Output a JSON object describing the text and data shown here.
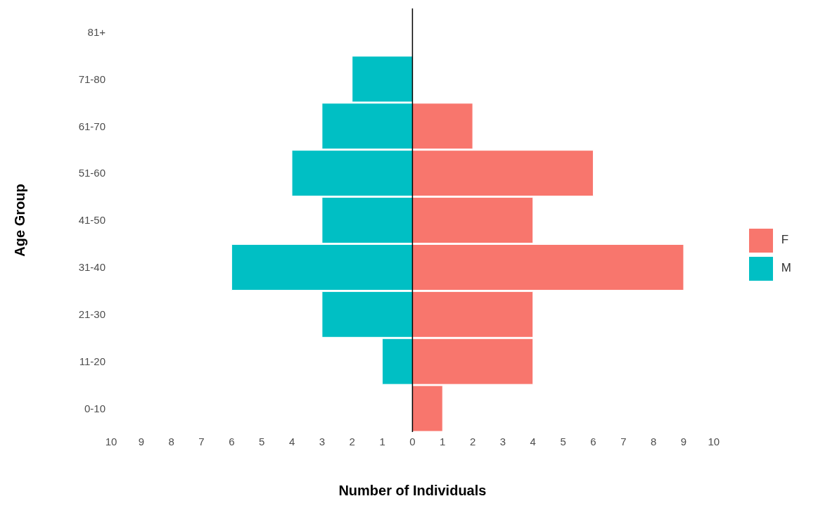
{
  "chart_data": {
    "type": "bar",
    "orientation": "horizontal",
    "stacked": true,
    "xlabel": "Number of Individuals",
    "ylabel": "Age Group",
    "categories": [
      "81+",
      "71-80",
      "61-70",
      "51-60",
      "41-50",
      "31-40",
      "21-30",
      "11-20",
      "0-10"
    ],
    "series": [
      {
        "name": "F",
        "color": "#f8766d",
        "values": [
          null,
          null,
          2,
          6,
          4,
          9,
          4,
          4,
          1
        ]
      },
      {
        "name": "M",
        "color": "#00bfc4",
        "values": [
          null,
          -2,
          -3,
          -4,
          -3,
          -6,
          -3,
          -1,
          null
        ]
      }
    ],
    "xlim": [
      -10,
      10
    ],
    "xticks": [
      {
        "value": -10,
        "label": "10"
      },
      {
        "value": -9,
        "label": "9"
      },
      {
        "value": -8,
        "label": "8"
      },
      {
        "value": -7,
        "label": "7"
      },
      {
        "value": -6,
        "label": "6"
      },
      {
        "value": -5,
        "label": "5"
      },
      {
        "value": -4,
        "label": "4"
      },
      {
        "value": -3,
        "label": "3"
      },
      {
        "value": -2,
        "label": "2"
      },
      {
        "value": -1,
        "label": "1"
      },
      0,
      1,
      2,
      3,
      4,
      5,
      6,
      7,
      8,
      9,
      10
    ],
    "ref_lines": [
      {
        "axis": "x",
        "value": 0,
        "color": "#000000"
      }
    ],
    "grid": false,
    "legend": "right"
  }
}
